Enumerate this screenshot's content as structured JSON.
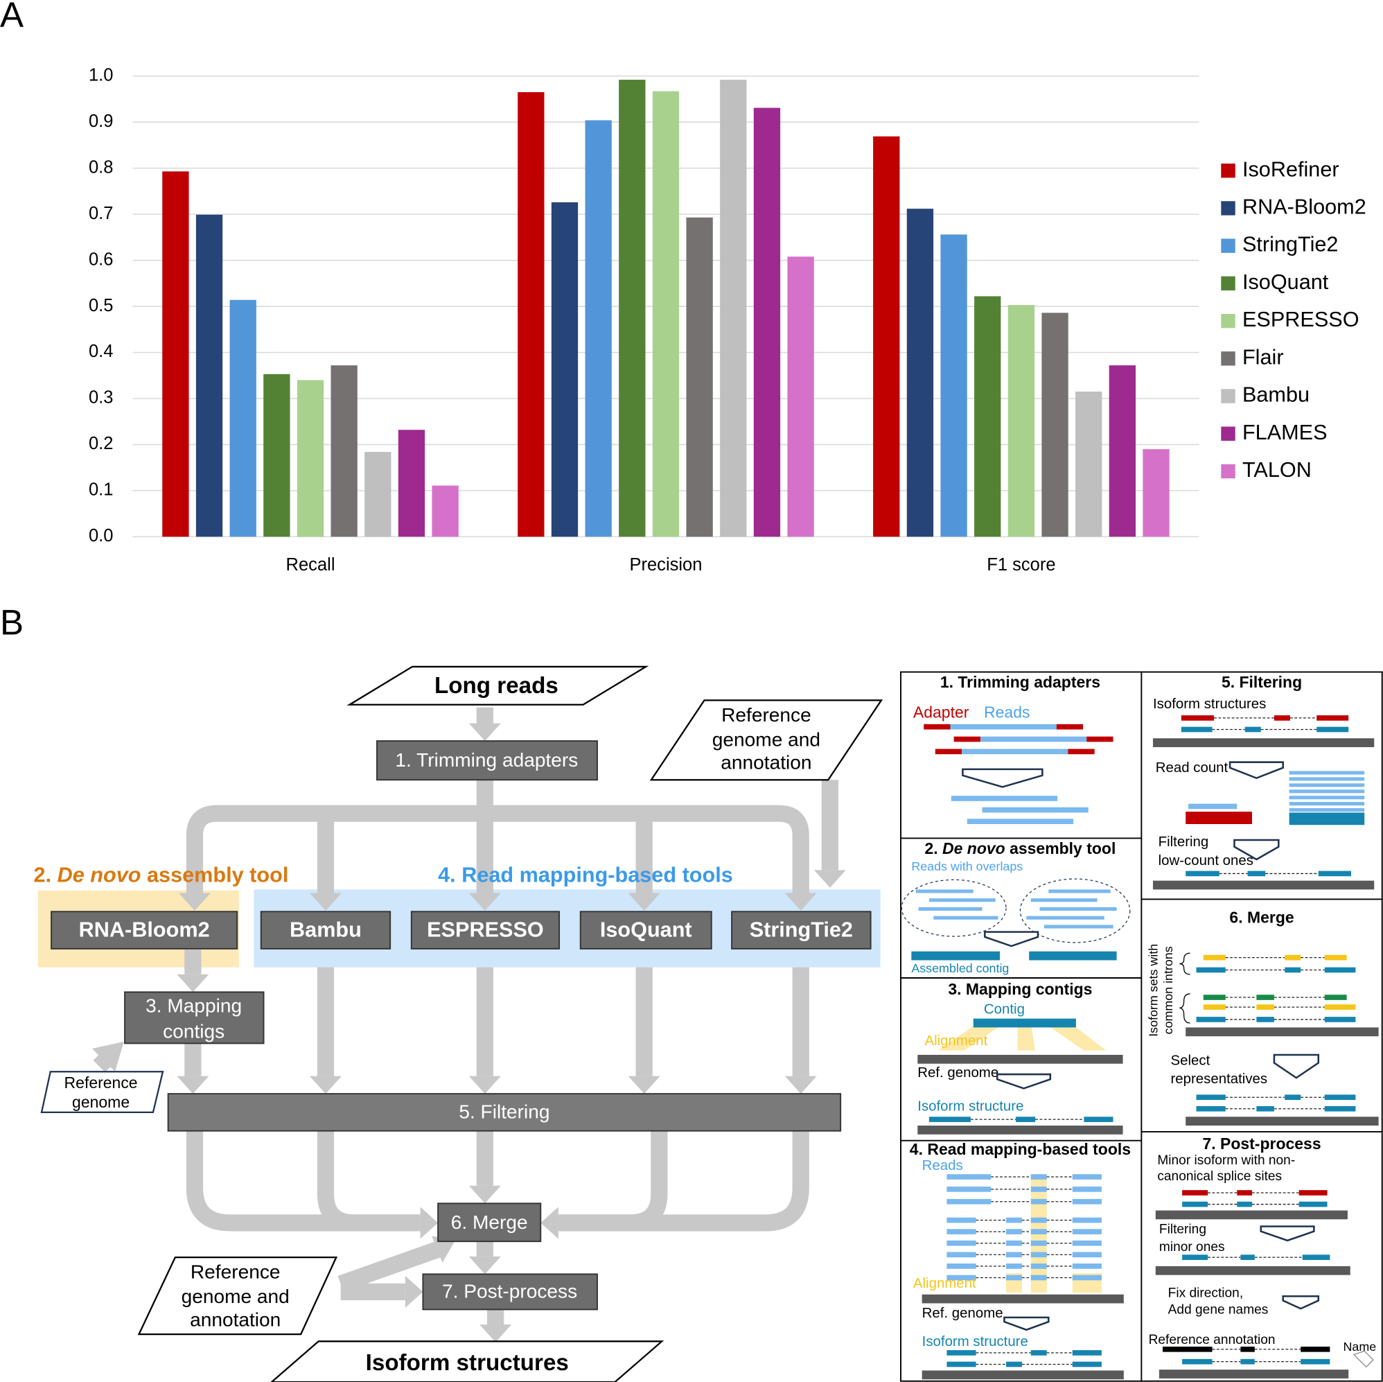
{
  "panel_labels": [
    "A",
    "B"
  ],
  "chart_data": {
    "type": "bar",
    "categories": [
      "Recall",
      "Precision",
      "F1 score"
    ],
    "series": [
      {
        "name": "IsoRefiner",
        "color": "#c00000",
        "values": [
          0.793,
          0.965,
          0.869
        ]
      },
      {
        "name": "RNA-Bloom2",
        "color": "#264478",
        "values": [
          0.699,
          0.726,
          0.712
        ]
      },
      {
        "name": "StringTie2",
        "color": "#5296d9",
        "values": [
          0.514,
          0.904,
          0.656
        ]
      },
      {
        "name": "IsoQuant",
        "color": "#548235",
        "values": [
          0.353,
          0.992,
          0.522
        ]
      },
      {
        "name": "ESPRESSO",
        "color": "#a9d18e",
        "values": [
          0.34,
          0.967,
          0.503
        ]
      },
      {
        "name": "Flair",
        "color": "#767171",
        "values": [
          0.372,
          0.693,
          0.486
        ]
      },
      {
        "name": "Bambu",
        "color": "#bfbfbf",
        "values": [
          0.184,
          0.992,
          0.315
        ]
      },
      {
        "name": "FLAMES",
        "color": "#9e2a8f",
        "values": [
          0.232,
          0.931,
          0.372
        ]
      },
      {
        "name": "TALON",
        "color": "#d671c9",
        "values": [
          0.111,
          0.608,
          0.19
        ]
      }
    ],
    "ylim": [
      0,
      1
    ],
    "yticks": [
      {
        "value": 0,
        "label": "0.0"
      },
      0.1,
      0.2,
      0.3,
      0.4,
      0.5,
      0.6,
      0.7,
      0.8,
      0.9,
      {
        "value": 1,
        "label": "1.0"
      }
    ],
    "grid": true,
    "legend": "right"
  },
  "flow": {
    "input": "Long reads",
    "trim": "1. Trimming adapters",
    "reference_1": [
      "Reference",
      "genome and",
      "annotation"
    ],
    "group_1": [
      "2. ",
      "De novo",
      " assembly tool"
    ],
    "group_2": "4. Read mapping-based tools",
    "tools": [
      "RNA-Bloom2",
      "Bambu",
      "ESPRESSO",
      "IsoQuant",
      "StringTie2"
    ],
    "map_contigs": [
      "3. Mapping",
      "contigs"
    ],
    "reference_2": [
      "Reference",
      "genome"
    ],
    "filter": "5. Filtering",
    "merge": "6. Merge",
    "post": "7. Post-process",
    "reference_3": [
      "Reference",
      "genome and",
      "annotation"
    ],
    "output": "Isoform structures"
  },
  "steps": [
    {
      "title": "1. Trimming adapters",
      "labels": [
        "Adapter",
        "Reads"
      ]
    },
    {
      "title": [
        "2. ",
        "De novo",
        " assembly tool"
      ],
      "labels": [
        "Reads with overlaps",
        "Assembled contig"
      ]
    },
    {
      "title": "3. Mapping contigs",
      "labels": [
        "Contig",
        "Alignment",
        "Ref. genome",
        "Isoform structure"
      ]
    },
    {
      "title": "4. Read mapping-based tools",
      "labels": [
        "Reads",
        "Alignment",
        "Ref. genome",
        "Isoform structure"
      ]
    },
    {
      "title": "5. Filtering",
      "labels": [
        "Isoform structures",
        "Read count",
        "Filtering",
        "low-count ones"
      ]
    },
    {
      "title": "6. Merge",
      "labels": [
        "Isoform sets with",
        "common introns",
        "Select",
        "representatives"
      ]
    },
    {
      "title": "7. Post-process",
      "labels": [
        "Minor isoform with non-",
        "canonical splice sites",
        "Filtering",
        "minor ones",
        "Fix direction,",
        "Add gene names",
        "Reference annotation",
        "Name"
      ]
    }
  ]
}
